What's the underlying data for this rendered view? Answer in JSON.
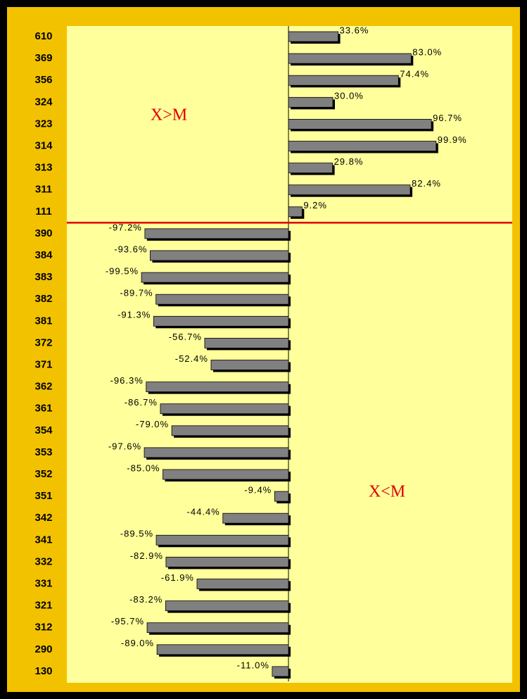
{
  "chart_data": {
    "type": "barh",
    "categories": [
      "610",
      "369",
      "356",
      "324",
      "323",
      "314",
      "313",
      "311",
      "111",
      "390",
      "384",
      "383",
      "382",
      "381",
      "372",
      "371",
      "362",
      "361",
      "354",
      "353",
      "352",
      "351",
      "342",
      "341",
      "332",
      "331",
      "321",
      "312",
      "290",
      "130"
    ],
    "values": [
      33.6,
      83.0,
      74.4,
      30.0,
      96.7,
      99.9,
      29.8,
      82.4,
      9.2,
      -97.2,
      -93.6,
      -99.5,
      -89.7,
      -91.3,
      -56.7,
      -52.4,
      -96.3,
      -86.7,
      -79.0,
      -97.6,
      -85.0,
      -9.4,
      -44.4,
      -89.5,
      -82.9,
      -61.9,
      -83.2,
      -95.7,
      -89.0,
      -11.0
    ],
    "value_labels": [
      "33.6%",
      "83.0%",
      "74.4%",
      "30.0%",
      "96.7%",
      "99.9%",
      "29.8%",
      "82.4%",
      "9.2%",
      "-97.2%",
      "-93.6%",
      "-99.5%",
      "-89.7%",
      "-91.3%",
      "-56.7%",
      "-52.4%",
      "-96.3%",
      "-86.7%",
      "-79.0%",
      "-97.6%",
      "-85.0%",
      "-9.4%",
      "-44.4%",
      "-89.5%",
      "-82.9%",
      "-61.9%",
      "-83.2%",
      "-95.7%",
      "-89.0%",
      "-11.0%"
    ],
    "color": "#808080",
    "xlim": [
      -150,
      150
    ],
    "annotations": [
      "X>M",
      "X<M"
    ]
  }
}
